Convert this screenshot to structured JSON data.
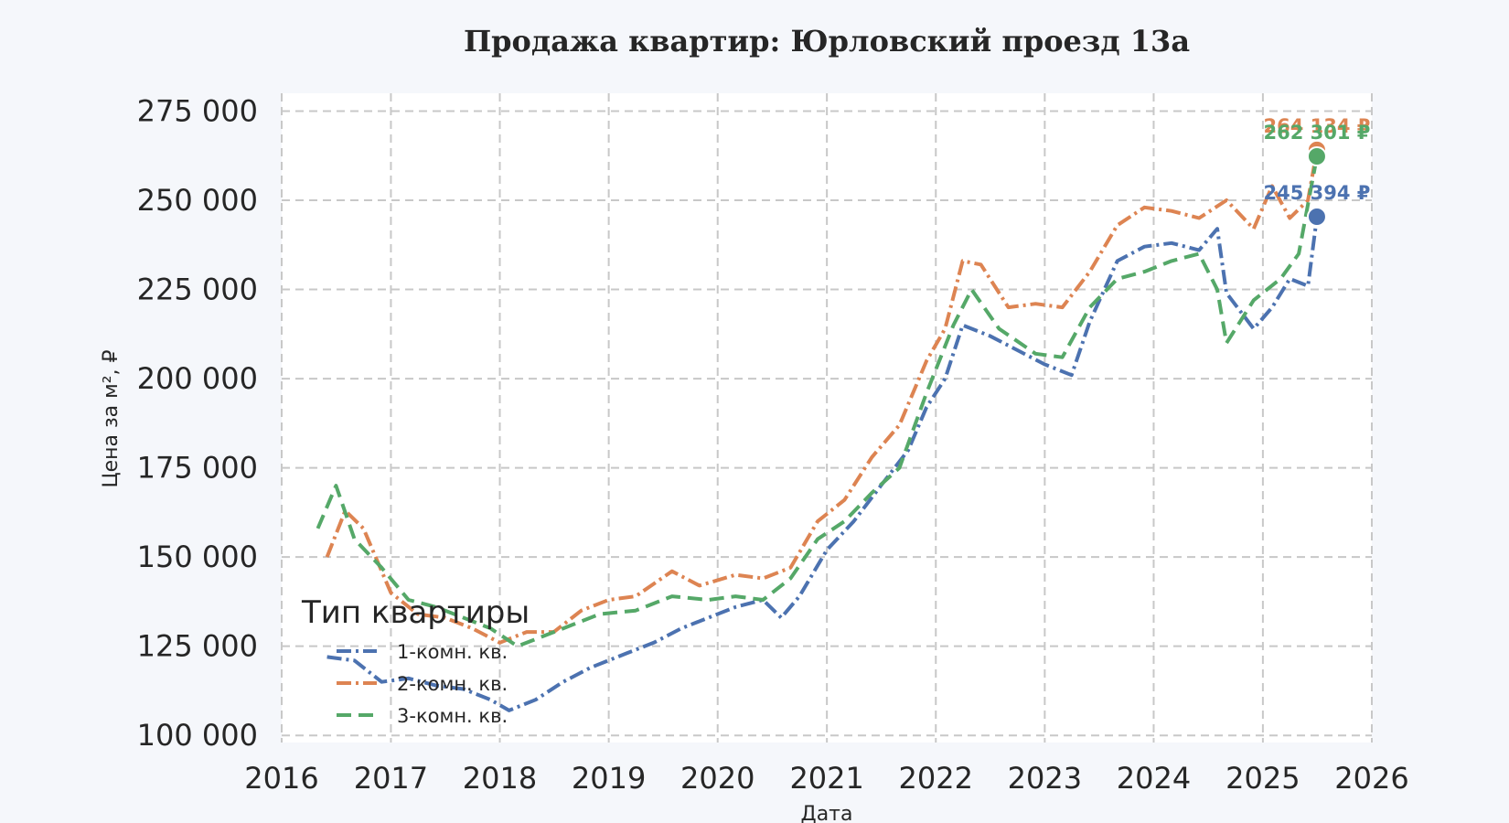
{
  "chart_data": {
    "type": "line",
    "title": "Продажа квартир: Юрловский проезд 13а",
    "xlabel": "Дата",
    "ylabel": "Цена за м², ₽",
    "xlim": [
      "2016-01-01",
      "2026-01-01"
    ],
    "ylim": [
      98000,
      280000
    ],
    "x_ticks": [
      "2016",
      "2017",
      "2018",
      "2019",
      "2020",
      "2021",
      "2022",
      "2023",
      "2024",
      "2025",
      "2026"
    ],
    "y_ticks": [
      100000,
      125000,
      150000,
      175000,
      200000,
      225000,
      250000,
      275000
    ],
    "y_tick_labels": [
      "100 000",
      "125 000",
      "150 000",
      "175 000",
      "200 000",
      "225 000",
      "250 000",
      "275 000"
    ],
    "grid": true,
    "legend": {
      "title": "Тип квартиры",
      "placement": "lower-left"
    },
    "series": [
      {
        "name": "1-комн. кв.",
        "color": "#4c72b0",
        "dash": "dashdot",
        "end_label": "245 394 ₽",
        "end_value": 245394,
        "points": [
          [
            "2016-06",
            122000
          ],
          [
            "2016-09",
            121000
          ],
          [
            "2016-12",
            115000
          ],
          [
            "2017-03",
            116000
          ],
          [
            "2017-06",
            114000
          ],
          [
            "2017-09",
            113000
          ],
          [
            "2017-12",
            110000
          ],
          [
            "2018-02",
            107000
          ],
          [
            "2018-05",
            110000
          ],
          [
            "2018-08",
            115000
          ],
          [
            "2018-11",
            119000
          ],
          [
            "2019-03",
            123000
          ],
          [
            "2019-06",
            126000
          ],
          [
            "2019-09",
            130000
          ],
          [
            "2019-12",
            133000
          ],
          [
            "2020-03",
            136000
          ],
          [
            "2020-06",
            138000
          ],
          [
            "2020-08",
            133000
          ],
          [
            "2020-10",
            139000
          ],
          [
            "2021-01",
            152000
          ],
          [
            "2021-04",
            160000
          ],
          [
            "2021-07",
            170000
          ],
          [
            "2021-10",
            180000
          ],
          [
            "2021-12",
            192000
          ],
          [
            "2022-02",
            200000
          ],
          [
            "2022-04",
            215000
          ],
          [
            "2022-07",
            212000
          ],
          [
            "2022-10",
            208000
          ],
          [
            "2023-01",
            204000
          ],
          [
            "2023-04",
            201000
          ],
          [
            "2023-06",
            216000
          ],
          [
            "2023-09",
            233000
          ],
          [
            "2023-12",
            237000
          ],
          [
            "2024-03",
            238000
          ],
          [
            "2024-06",
            236000
          ],
          [
            "2024-08",
            242000
          ],
          [
            "2024-09",
            224000
          ],
          [
            "2024-12",
            214000
          ],
          [
            "2025-02",
            220000
          ],
          [
            "2025-04",
            228000
          ],
          [
            "2025-06",
            226000
          ],
          [
            "2025-07",
            245394
          ]
        ]
      },
      {
        "name": "2-комн. кв.",
        "color": "#dd8452",
        "dash": "dashdot",
        "end_label": "264 134 ₽",
        "end_value": 264134,
        "points": [
          [
            "2016-06",
            150000
          ],
          [
            "2016-08",
            163000
          ],
          [
            "2016-10",
            158000
          ],
          [
            "2017-01",
            140000
          ],
          [
            "2017-04",
            134000
          ],
          [
            "2017-07",
            133000
          ],
          [
            "2017-10",
            130000
          ],
          [
            "2018-01",
            126000
          ],
          [
            "2018-04",
            129000
          ],
          [
            "2018-07",
            129000
          ],
          [
            "2018-10",
            135000
          ],
          [
            "2019-01",
            138000
          ],
          [
            "2019-04",
            139000
          ],
          [
            "2019-08",
            146000
          ],
          [
            "2019-11",
            142000
          ],
          [
            "2020-03",
            145000
          ],
          [
            "2020-06",
            144000
          ],
          [
            "2020-09",
            147000
          ],
          [
            "2020-12",
            160000
          ],
          [
            "2021-03",
            166000
          ],
          [
            "2021-06",
            178000
          ],
          [
            "2021-09",
            187000
          ],
          [
            "2021-12",
            205000
          ],
          [
            "2022-02",
            214000
          ],
          [
            "2022-04",
            233000
          ],
          [
            "2022-06",
            232000
          ],
          [
            "2022-09",
            220000
          ],
          [
            "2022-12",
            221000
          ],
          [
            "2023-03",
            220000
          ],
          [
            "2023-06",
            230000
          ],
          [
            "2023-09",
            243000
          ],
          [
            "2023-12",
            248000
          ],
          [
            "2024-03",
            247000
          ],
          [
            "2024-06",
            245000
          ],
          [
            "2024-09",
            250000
          ],
          [
            "2024-12",
            242000
          ],
          [
            "2025-02",
            254000
          ],
          [
            "2025-04",
            245000
          ],
          [
            "2025-06",
            250000
          ],
          [
            "2025-07",
            264134
          ]
        ]
      },
      {
        "name": "3-комн. кв.",
        "color": "#55a868",
        "dash": "dashed",
        "end_label": "262 301 ₽",
        "end_value": 262301,
        "points": [
          [
            "2016-05",
            158000
          ],
          [
            "2016-07",
            170000
          ],
          [
            "2016-09",
            155000
          ],
          [
            "2016-12",
            147000
          ],
          [
            "2017-03",
            138000
          ],
          [
            "2017-06",
            136000
          ],
          [
            "2017-09",
            133000
          ],
          [
            "2017-12",
            130000
          ],
          [
            "2018-03",
            125000
          ],
          [
            "2018-06",
            128000
          ],
          [
            "2018-09",
            131000
          ],
          [
            "2018-12",
            134000
          ],
          [
            "2019-04",
            135000
          ],
          [
            "2019-08",
            139000
          ],
          [
            "2019-12",
            138000
          ],
          [
            "2020-03",
            139000
          ],
          [
            "2020-06",
            138000
          ],
          [
            "2020-09",
            144000
          ],
          [
            "2020-12",
            155000
          ],
          [
            "2021-03",
            160000
          ],
          [
            "2021-06",
            168000
          ],
          [
            "2021-09",
            175000
          ],
          [
            "2021-12",
            196000
          ],
          [
            "2022-03",
            215000
          ],
          [
            "2022-05",
            225000
          ],
          [
            "2022-08",
            214000
          ],
          [
            "2022-12",
            207000
          ],
          [
            "2023-03",
            206000
          ],
          [
            "2023-06",
            220000
          ],
          [
            "2023-09",
            228000
          ],
          [
            "2023-12",
            230000
          ],
          [
            "2024-03",
            233000
          ],
          [
            "2024-06",
            235000
          ],
          [
            "2024-08",
            225000
          ],
          [
            "2024-09",
            210000
          ],
          [
            "2024-12",
            222000
          ],
          [
            "2025-03",
            228000
          ],
          [
            "2025-05",
            235000
          ],
          [
            "2025-07",
            262301
          ]
        ]
      }
    ]
  }
}
